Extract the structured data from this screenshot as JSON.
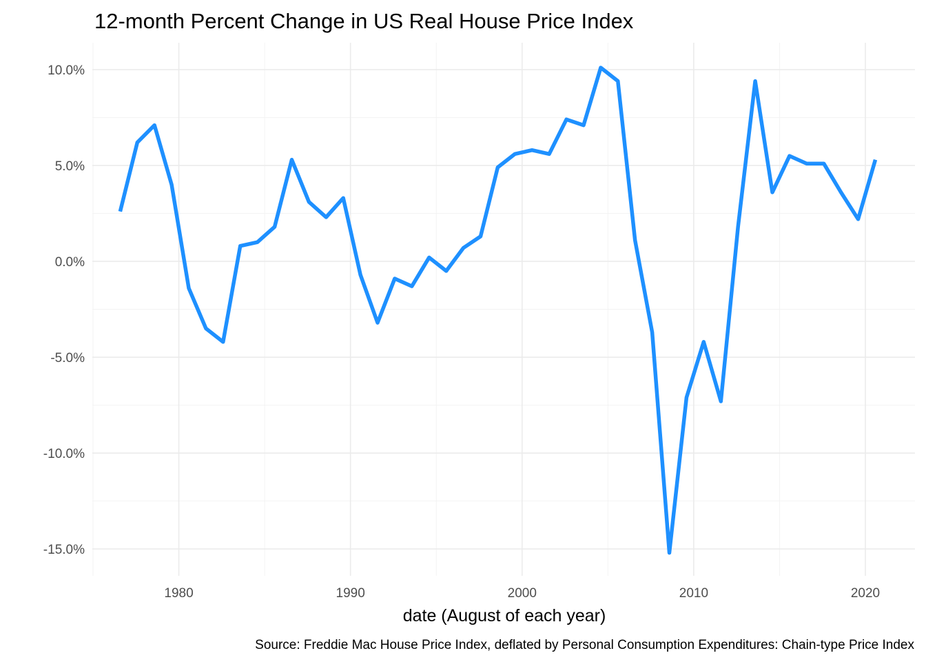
{
  "chart_data": {
    "type": "line",
    "title": "12-month Percent Change in US Real House Price Index",
    "xlabel": "date (August of each year)",
    "ylabel": "",
    "caption": "Source: Freddie Mac House Price Index, deflated by Personal Consumption Expenditures: Chain-type Price Index",
    "xlim": [
      1975.2,
      1976.0
    ],
    "x_range": [
      1974.96,
      2022.89
    ],
    "ylim": [
      -16.4,
      11.4
    ],
    "x_ticks": [
      1980,
      1990,
      2000,
      2010,
      2020
    ],
    "x_tick_labels": [
      "1980",
      "1990",
      "2000",
      "2010",
      "2020"
    ],
    "y_ticks": [
      -15,
      -10,
      -5,
      0,
      5,
      10
    ],
    "y_tick_labels": [
      "-15.0%",
      "-10.0%",
      "-5.0%",
      "0.0%",
      "5.0%",
      "10.0%"
    ],
    "grid": true,
    "legend": "none",
    "line_color": "#1e90ff",
    "series": [
      {
        "x": [
          1976.58,
          1977.58,
          1978.58,
          1979.58,
          1980.58,
          1981.58,
          1982.58,
          1983.58,
          1984.58,
          1985.58,
          1986.58,
          1987.58,
          1988.58,
          1989.58,
          1990.58,
          1991.58,
          1992.58,
          1993.58,
          1994.58,
          1995.58,
          1996.58,
          1997.58,
          1998.58,
          1999.58,
          2000.58,
          2001.58,
          2002.58,
          2003.58,
          2004.58,
          2005.58,
          2006.58,
          2007.58,
          2008.58,
          2009.58,
          2010.58,
          2011.58,
          2012.58,
          2013.58,
          2014.58,
          2015.58,
          2016.58,
          2017.58,
          2018.58,
          2019.58,
          2020.58
        ],
        "values": [
          2.6,
          6.2,
          7.1,
          4.0,
          -1.4,
          -3.5,
          -4.2,
          0.8,
          1.0,
          1.8,
          5.3,
          3.1,
          2.3,
          3.3,
          -0.7,
          -3.2,
          -0.9,
          -1.3,
          0.2,
          -0.5,
          0.7,
          1.3,
          4.9,
          5.6,
          5.8,
          5.6,
          7.4,
          7.1,
          10.1,
          9.4,
          1.1,
          -3.7,
          -15.2,
          -7.1,
          -4.2,
          -7.3,
          1.8,
          9.4,
          3.6,
          5.5,
          5.1,
          5.1,
          3.6,
          2.2,
          5.3
        ]
      }
    ]
  }
}
